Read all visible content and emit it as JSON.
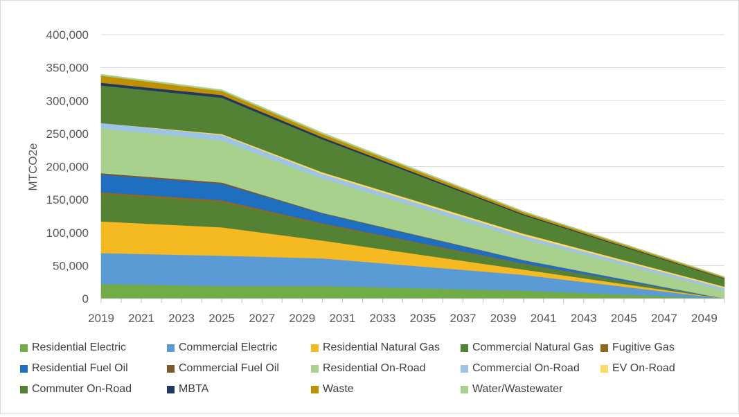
{
  "chart_data": {
    "type": "area",
    "stacked": true,
    "title": "",
    "xlabel": "",
    "ylabel": "MTCO2e",
    "ylim": [
      0,
      400000
    ],
    "y_ticks": [
      "0",
      "50,000",
      "100,000",
      "150,000",
      "200,000",
      "250,000",
      "300,000",
      "350,000",
      "400,000"
    ],
    "x_ticks": [
      "2019",
      "2021",
      "2023",
      "2025",
      "2027",
      "2029",
      "2031",
      "2033",
      "2035",
      "2037",
      "2039",
      "2041",
      "2043",
      "2045",
      "2047",
      "2049"
    ],
    "x": [
      2019,
      2025,
      2030,
      2040,
      2050
    ],
    "grid": true,
    "legend_position": "bottom",
    "series": [
      {
        "name": "Residential Electric",
        "color": "#70ad47",
        "values": [
          22000,
          19000,
          19000,
          12000,
          0
        ]
      },
      {
        "name": "Commercial Electric",
        "color": "#5b9bd5",
        "values": [
          47000,
          46000,
          42000,
          24000,
          0
        ]
      },
      {
        "name": "Residential Natural Gas",
        "color": "#f5b921",
        "values": [
          48000,
          43000,
          27000,
          8000,
          0
        ]
      },
      {
        "name": "Commercial Natural Gas",
        "color": "#548235",
        "values": [
          41000,
          38000,
          24000,
          8000,
          0
        ]
      },
      {
        "name": "Fugitive Gas",
        "color": "#8b6c1e",
        "values": [
          3000,
          3000,
          2000,
          1000,
          0
        ]
      },
      {
        "name": "Residential Fuel Oil",
        "color": "#1f6fc1",
        "values": [
          27000,
          25000,
          15000,
          5000,
          0
        ]
      },
      {
        "name": "Commercial Fuel Oil",
        "color": "#7b5a2a",
        "values": [
          2000,
          2000,
          1000,
          500,
          0
        ]
      },
      {
        "name": "Residential On-Road",
        "color": "#a9d18e",
        "values": [
          68000,
          64000,
          52000,
          32000,
          12000
        ]
      },
      {
        "name": "Commercial On-Road",
        "color": "#9dc3e6",
        "values": [
          8000,
          8000,
          7000,
          5000,
          4000
        ]
      },
      {
        "name": "EV On-Road",
        "color": "#ffd966",
        "values": [
          0,
          1500,
          2500,
          3000,
          2000
        ]
      },
      {
        "name": "Commuter On-Road",
        "color": "#548235",
        "values": [
          57000,
          55000,
          50000,
          28000,
          12000
        ]
      },
      {
        "name": "MBTA",
        "color": "#1f3864",
        "values": [
          4000,
          4000,
          3000,
          1500,
          800
        ]
      },
      {
        "name": "Waste",
        "color": "#bf9000",
        "values": [
          11000,
          6000,
          5000,
          3000,
          1500
        ]
      },
      {
        "name": "Water/Wastewater",
        "color": "#a9d18e",
        "values": [
          2000,
          2000,
          2000,
          1500,
          1000
        ]
      }
    ]
  }
}
